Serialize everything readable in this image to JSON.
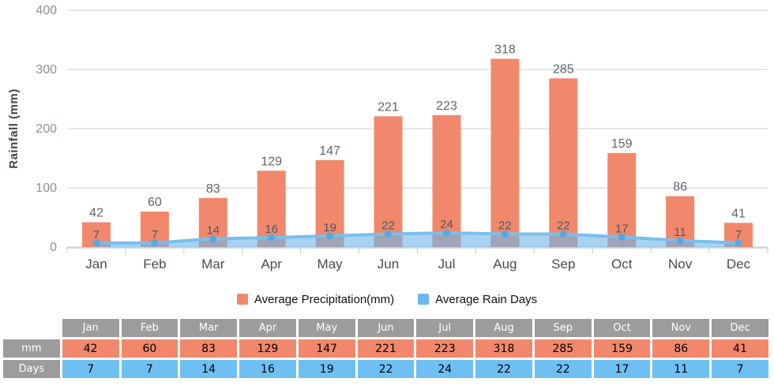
{
  "chart_data": {
    "type": "bar",
    "categories": [
      "Jan",
      "Feb",
      "Mar",
      "Apr",
      "May",
      "Jun",
      "Jul",
      "Aug",
      "Sep",
      "Oct",
      "Nov",
      "Dec"
    ],
    "series": [
      {
        "name": "Average Precipitation(mm)",
        "type": "bar",
        "color": "#F1886B",
        "values": [
          42,
          60,
          83,
          129,
          147,
          221,
          223,
          318,
          285,
          159,
          86,
          41
        ]
      },
      {
        "name": "Average Rain Days",
        "type": "area",
        "color": "#6CB5E8",
        "line_color": "#79BFEC",
        "marker_color": "#58A8DD",
        "values": [
          7,
          7,
          14,
          16,
          19,
          22,
          24,
          22,
          22,
          17,
          11,
          7
        ]
      }
    ],
    "title": "",
    "xlabel": "",
    "ylabel": "Rainfall (mm)",
    "ylim": [
      0,
      400
    ],
    "yticks": [
      0,
      100,
      200,
      300,
      400
    ],
    "grid": true,
    "legend_position": "bottom"
  },
  "legend": {
    "items": [
      {
        "label": "Average Precipitation(mm)",
        "color": "#F1886B"
      },
      {
        "label": "Average Rain Days",
        "color": "#6CB9EE"
      }
    ]
  },
  "table": {
    "columns": [
      "Jan",
      "Feb",
      "Mar",
      "Apr",
      "May",
      "Jun",
      "Jul",
      "Aug",
      "Sep",
      "Oct",
      "Nov",
      "Dec"
    ],
    "header_bg": "#9C9C9C",
    "rows": [
      {
        "header": "mm",
        "color": "#F1886B",
        "values": [
          42,
          60,
          83,
          129,
          147,
          221,
          223,
          318,
          285,
          159,
          86,
          41
        ]
      },
      {
        "header": "Days",
        "color": "#6FC0F2",
        "values": [
          7,
          7,
          14,
          16,
          19,
          22,
          24,
          22,
          22,
          17,
          11,
          7
        ]
      }
    ]
  }
}
